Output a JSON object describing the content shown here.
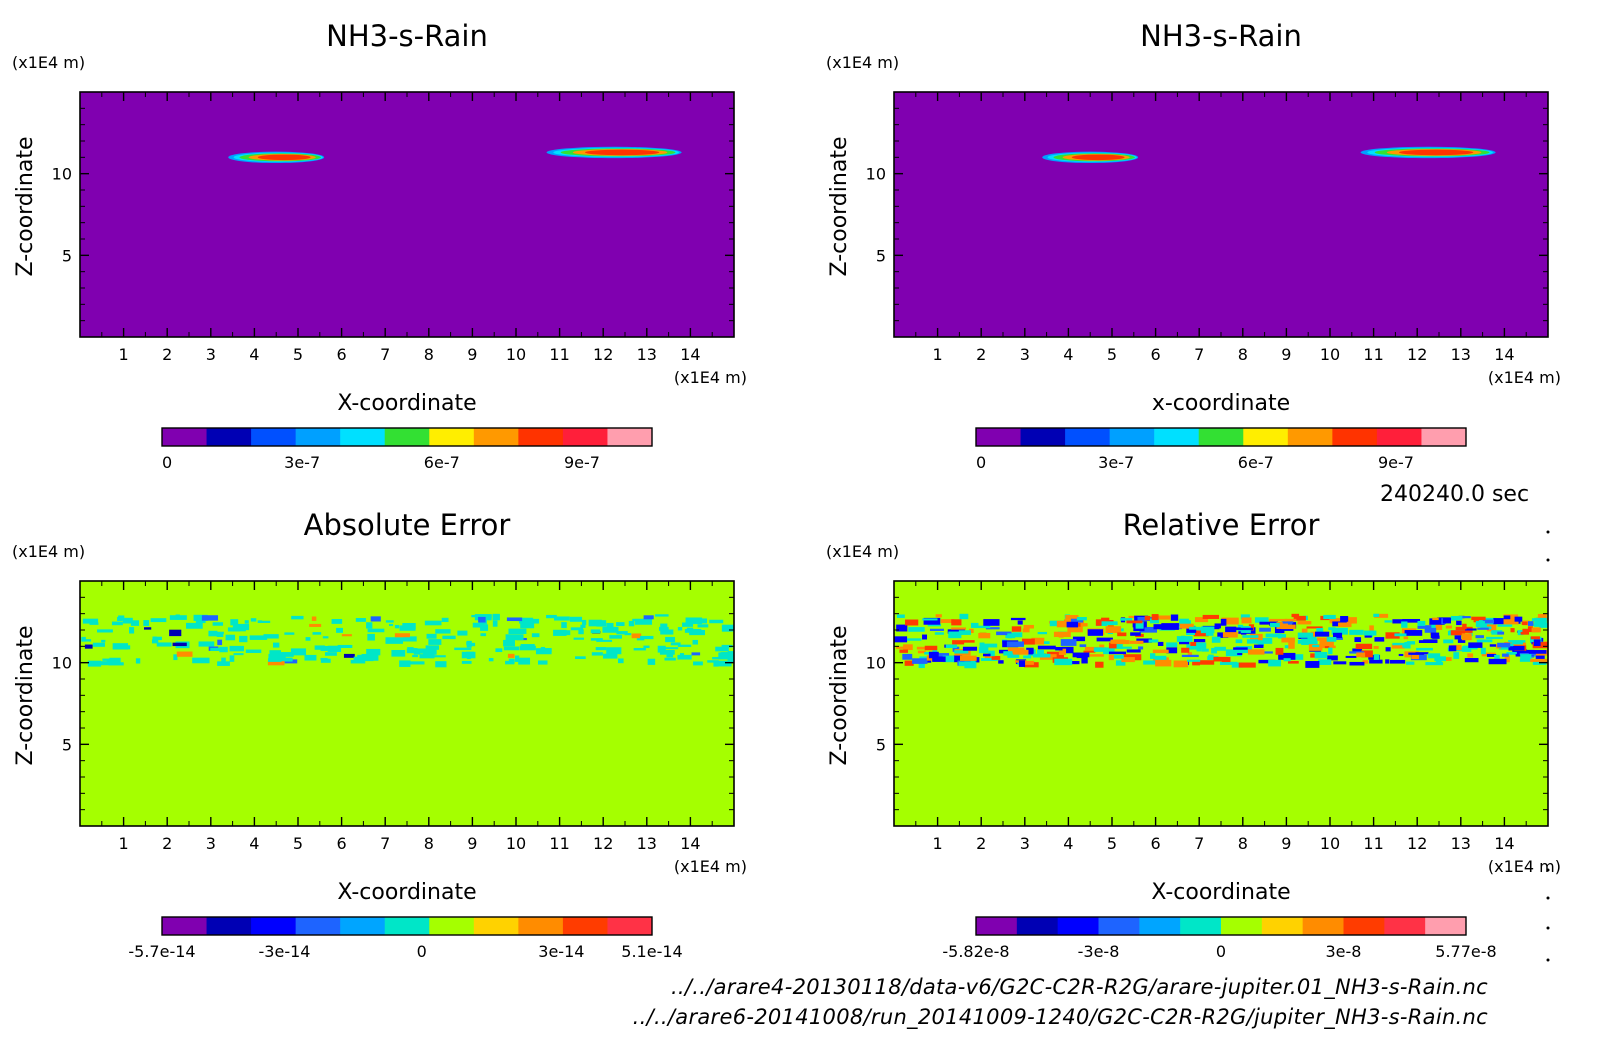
{
  "time_label": "240240.0 sec",
  "files": [
    "../../arare4-20130118/data-v6/G2C-C2R-R2G/arare-jupiter.01_NH3-s-Rain.nc",
    "../../arare6-20141008/run_20141009-1240/G2C-C2R-R2G/jupiter_NH3-s-Rain.nc"
  ],
  "colors": {
    "rain": [
      "#8000b0",
      "#0000b4",
      "#0050ff",
      "#00a0ff",
      "#00e0ff",
      "#33e033",
      "#ffee00",
      "#ff9900",
      "#ff3300",
      "#ff1f3a",
      "#ff9eae"
    ],
    "abs_err": [
      "#8000b0",
      "#0000b4",
      "#0000ff",
      "#1e64ff",
      "#00a5ff",
      "#00e6c8",
      "#a5ff00",
      "#ffd200",
      "#ff8c00",
      "#ff3c00",
      "#ff3246"
    ],
    "rel_err": [
      "#8000b0",
      "#0000b4",
      "#0000ff",
      "#1e64ff",
      "#00a5ff",
      "#00e6c8",
      "#a5ff00",
      "#ffd200",
      "#ff8c00",
      "#ff3c00",
      "#ff3246",
      "#ff9eae"
    ]
  },
  "chart_data": [
    {
      "type": "heatmap",
      "title": "NH3-s-Rain",
      "xlabel": "X-coordinate",
      "ylabel": "Z-coordinate",
      "x_unit": "(x1E4 m)",
      "y_unit": "(x1E4 m)",
      "xlim": [
        0,
        15
      ],
      "ylim": [
        0,
        15
      ],
      "xticks": [
        "1",
        "2",
        "3",
        "4",
        "5",
        "6",
        "7",
        "8",
        "9",
        "10",
        "11",
        "12",
        "13",
        "14"
      ],
      "yticks": [
        "5",
        "10"
      ],
      "background_value": 0,
      "features": [
        {
          "x_range": [
            3.4,
            5.6
          ],
          "z": 11.0,
          "peak": 8e-07
        },
        {
          "x_range": [
            10.7,
            13.8
          ],
          "z": 11.3,
          "peak": 1e-06
        }
      ],
      "colorbar": {
        "ticks": [
          "0",
          "3e-7",
          "6e-7",
          "9e-7"
        ],
        "palette": "rain"
      }
    },
    {
      "type": "heatmap",
      "title": "NH3-s-Rain",
      "xlabel": "x-coordinate",
      "ylabel": "Z-coordinate",
      "x_unit": "(x1E4 m)",
      "y_unit": "(x1E4 m)",
      "xlim": [
        0,
        15
      ],
      "ylim": [
        0,
        15
      ],
      "xticks": [
        "1",
        "2",
        "3",
        "4",
        "5",
        "6",
        "7",
        "8",
        "9",
        "10",
        "11",
        "12",
        "13",
        "14"
      ],
      "yticks": [
        "5",
        "10"
      ],
      "background_value": 0,
      "features": [
        {
          "x_range": [
            3.4,
            5.6
          ],
          "z": 11.0,
          "peak": 8e-07
        },
        {
          "x_range": [
            10.7,
            13.8
          ],
          "z": 11.3,
          "peak": 1e-06
        }
      ],
      "colorbar": {
        "ticks": [
          "0",
          "3e-7",
          "6e-7",
          "9e-7"
        ],
        "palette": "rain"
      }
    },
    {
      "type": "heatmap",
      "title": "Absolute Error",
      "xlabel": "X-coordinate",
      "ylabel": "Z-coordinate",
      "x_unit": "(x1E4 m)",
      "y_unit": "(x1E4 m)",
      "xlim": [
        0,
        15
      ],
      "ylim": [
        0,
        15
      ],
      "xticks": [
        "1",
        "2",
        "3",
        "4",
        "5",
        "6",
        "7",
        "8",
        "9",
        "10",
        "11",
        "12",
        "13",
        "14"
      ],
      "yticks": [
        "5",
        "10"
      ],
      "background_value": 0,
      "noise_band_z": [
        10,
        13
      ],
      "colorbar": {
        "ticks": [
          "-5.7e-14",
          "-3e-14",
          "0",
          "3e-14",
          "5.1e-14"
        ],
        "palette": "abs_err"
      }
    },
    {
      "type": "heatmap",
      "title": "Relative Error",
      "xlabel": "X-coordinate",
      "ylabel": "Z-coordinate",
      "x_unit": "(x1E4 m)",
      "y_unit": "(x1E4 m)",
      "xlim": [
        0,
        15
      ],
      "ylim": [
        0,
        15
      ],
      "xticks": [
        "1",
        "2",
        "3",
        "4",
        "5",
        "6",
        "7",
        "8",
        "9",
        "10",
        "11",
        "12",
        "13",
        "14"
      ],
      "yticks": [
        "5",
        "10"
      ],
      "background_value": 0,
      "noise_band_z": [
        10,
        13
      ],
      "colorbar": {
        "ticks": [
          "-5.82e-8",
          "-3e-8",
          "0",
          "3e-8",
          "5.77e-8"
        ],
        "palette": "rel_err"
      }
    }
  ]
}
